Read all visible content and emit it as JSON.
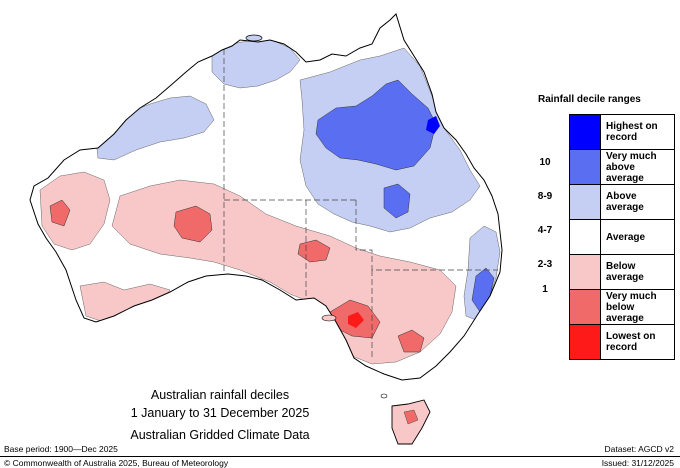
{
  "title": {
    "line1": "Australian rainfall deciles",
    "line2": "1 January to 31 December 2025",
    "line3": "Australian Gridded Climate Data"
  },
  "legend": {
    "heading": "Rainfall decile ranges",
    "items": [
      {
        "label": "Highest on record",
        "color": "#0000ff"
      },
      {
        "label": "Very much above average",
        "color": "#5a6ef2"
      },
      {
        "label": "Above average",
        "color": "#c5cef3"
      },
      {
        "label": "Average",
        "color": "#ffffff"
      },
      {
        "label": "Below average",
        "color": "#f8c7c7"
      },
      {
        "label": "Very much below average",
        "color": "#f06a6a"
      },
      {
        "label": "Lowest on record",
        "color": "#ff1a1a"
      }
    ],
    "ranges": [
      "10",
      "8-9",
      "4-7",
      "2-3",
      "1"
    ]
  },
  "footer": {
    "base_period": "Base period: 1900—Dec 2025",
    "dataset": "Dataset: AGCD v2",
    "copyright": "© Commonwealth of Australia 2025, Bureau of Meteorology",
    "issued": "Issued: 31/12/2025"
  }
}
